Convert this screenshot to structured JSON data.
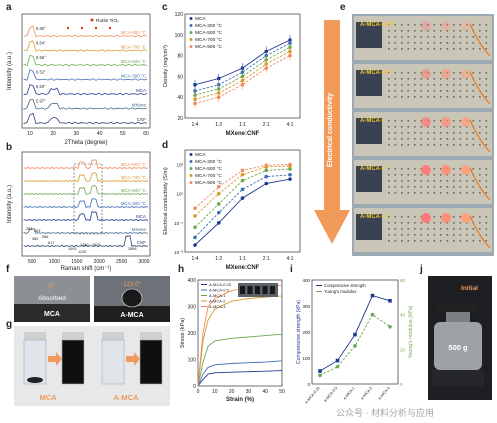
{
  "panel_letters": [
    "a",
    "b",
    "c",
    "d",
    "e",
    "f",
    "g",
    "h",
    "i",
    "j"
  ],
  "colors": {
    "mca": "#1f3a93",
    "mca300": "#3f6fb3",
    "mca500": "#6aa84f",
    "mca700": "#d79a2b",
    "mca900": "#f08a5a",
    "cnf": "#2a3f6e",
    "mxene": "#3d6b8c",
    "arrow": "#f29a5a",
    "rutile": "#d0421b"
  },
  "panel_a": {
    "ylabel": "Intensity (a.u.)",
    "xlabel": "2Theta (degree)",
    "xticks": [
      "10",
      "20",
      "30",
      "40",
      "50",
      "60"
    ],
    "legend": "Rutile TiO₂",
    "angle_labels": [
      "6.80°",
      "6.64°",
      "6.56°",
      "6.52°",
      "6.50°",
      "5.97°"
    ],
    "curve_labels": [
      "MCA-900 °C",
      "MCA-700 °C",
      "MCA-500 °C",
      "MCA-300 °C",
      "MCA",
      "MXene",
      "CNF"
    ]
  },
  "panel_b": {
    "ylabel": "Intensity (a.u.)",
    "xlabel": "Raman shift (cm⁻¹)",
    "xticks": [
      "500",
      "1000",
      "1500",
      "2000",
      "2500",
      "3000"
    ],
    "curve_labels": [
      "MCA-900 °C",
      "MCA-700 °C",
      "MCA-500 °C",
      "MCA-300 °C",
      "MCA",
      "MXene",
      "CNF"
    ],
    "peak_labels": [
      "1340",
      "1575",
      "2896",
      "380",
      "556",
      "1093",
      "1125",
      "283",
      "403",
      "617"
    ]
  },
  "panel_c": {
    "ylabel": "Density (mg/cm³)",
    "xlabel": "MXene:CNF",
    "legend": [
      "MCA",
      "MCA-300 °C",
      "MCA-500 °C",
      "MCA-700 °C",
      "MCA-900 °C"
    ]
  },
  "panel_d": {
    "ylabel": "Electrical conductivity (S/m)",
    "xlabel": "MXene:CNF",
    "legend": [
      "MCA",
      "MCA-300 °C",
      "MCA-500 °C",
      "MCA-700 °C",
      "MCA-900 °C"
    ]
  },
  "panel_e": {
    "arrow_label": "Electrical conductivity",
    "samples": [
      "A-MCA-0.25",
      "A-MCA-0.5",
      "A-MCA-1",
      "A-MCA-2",
      "A-MCA-4"
    ]
  },
  "panel_f": {
    "left_angle": "0°",
    "left_status": "Absorbed",
    "left_label": "MCA",
    "right_angle": "123.0°",
    "right_label": "A-MCA"
  },
  "panel_g": {
    "left_label": "MCA",
    "right_label": "A-MCA"
  },
  "panel_h": {
    "ylabel": "Stress (kPa)",
    "xlabel": "Strain (%)",
    "legend": [
      "A-MCA-0.25",
      "A-MCA-0.5",
      "A-MCA-1",
      "A-MCA-2",
      "A-MCA-4"
    ]
  },
  "panel_i": {
    "ylabel_left": "Compressive strength (kPa)",
    "ylabel_right": "Young's modulus (kPa)",
    "legend": [
      "Compressive strength",
      "Young's modulus"
    ],
    "categories": [
      "A-MCA-0.25",
      "A-MCA-0.5",
      "A-MCA-1",
      "A-MCA-2",
      "A-MCA-4"
    ]
  },
  "panel_j": {
    "top_label": "Initial",
    "weight": "500 g"
  },
  "watermark": "公众号 · 材料分析与应用",
  "chart_data": [
    {
      "panel": "c",
      "type": "line",
      "categories": [
        "1:4",
        "1:2",
        "1:1",
        "2:1",
        "4:1"
      ],
      "ylim": [
        20,
        120
      ],
      "yticks": [
        20,
        40,
        60,
        80,
        100,
        120
      ],
      "series": [
        {
          "name": "MCA",
          "values": [
            52,
            58,
            68,
            84,
            95
          ]
        },
        {
          "name": "MCA-300 °C",
          "values": [
            46,
            52,
            64,
            80,
            92
          ]
        },
        {
          "name": "MCA-500 °C",
          "values": [
            42,
            48,
            60,
            76,
            88
          ]
        },
        {
          "name": "MCA-700 °C",
          "values": [
            38,
            44,
            56,
            72,
            84
          ]
        },
        {
          "name": "MCA-900 °C",
          "values": [
            34,
            40,
            52,
            68,
            80
          ]
        }
      ]
    },
    {
      "panel": "d",
      "type": "line",
      "yscale": "log",
      "categories": [
        "1:4",
        "1:2",
        "1:1",
        "2:1",
        "4:1"
      ],
      "ylim": [
        0.001,
        10000
      ],
      "yticks": [
        "10⁻³",
        "10⁻¹",
        "10¹",
        "10³"
      ],
      "series": [
        {
          "name": "MCA",
          "values": [
            0.003,
            0.1,
            5,
            50,
            100
          ]
        },
        {
          "name": "MCA-300 °C",
          "values": [
            0.01,
            0.5,
            20,
            150,
            200
          ]
        },
        {
          "name": "MCA-500 °C",
          "values": [
            0.05,
            2,
            80,
            400,
            500
          ]
        },
        {
          "name": "MCA-700 °C",
          "values": [
            0.3,
            10,
            200,
            700,
            800
          ]
        },
        {
          "name": "MCA-900 °C",
          "values": [
            1,
            30,
            400,
            900,
            1000
          ]
        }
      ]
    },
    {
      "panel": "h",
      "type": "line",
      "xlim": [
        0,
        50
      ],
      "ylim": [
        0,
        400
      ],
      "xticks": [
        0,
        10,
        20,
        30,
        40,
        50
      ],
      "yticks": [
        0,
        100,
        200,
        300,
        400
      ],
      "series": [
        {
          "name": "A-MCA-0.25",
          "x": [
            0,
            3,
            6,
            10,
            20,
            30,
            40,
            50
          ],
          "values": [
            0,
            25,
            45,
            50,
            52,
            54,
            56,
            58
          ]
        },
        {
          "name": "A-MCA-0.5",
          "x": [
            0,
            3,
            6,
            10,
            20,
            30,
            40,
            50
          ],
          "values": [
            0,
            45,
            70,
            80,
            85,
            88,
            90,
            95
          ]
        },
        {
          "name": "A-MCA-1",
          "x": [
            0,
            3,
            6,
            10,
            20,
            30,
            40,
            50
          ],
          "values": [
            0,
            90,
            150,
            170,
            180,
            185,
            190,
            195
          ]
        },
        {
          "name": "A-MCA-2",
          "x": [
            0,
            3,
            6,
            10,
            20,
            30,
            40,
            50
          ],
          "values": [
            0,
            170,
            250,
            290,
            320,
            330,
            335,
            340
          ]
        },
        {
          "name": "A-MCA-4",
          "x": [
            0,
            3,
            6,
            10,
            20,
            30,
            40,
            50
          ],
          "values": [
            0,
            200,
            300,
            330,
            360,
            370,
            375,
            380
          ]
        }
      ]
    },
    {
      "panel": "i",
      "type": "line",
      "categories": [
        "A-MCA-0.25",
        "A-MCA-0.5",
        "A-MCA-1",
        "A-MCA-2",
        "A-MCA-4"
      ],
      "ylim": [
        0,
        400
      ],
      "y2lim": [
        0,
        60
      ],
      "yticks": [
        0,
        100,
        200,
        300,
        400
      ],
      "y2ticks": [
        0,
        20,
        40,
        60
      ],
      "series": [
        {
          "name": "Compressive strength",
          "axis": "left",
          "values": [
            50,
            90,
            190,
            340,
            320
          ]
        },
        {
          "name": "Young's modulus",
          "axis": "right",
          "values": [
            5,
            10,
            22,
            40,
            33
          ]
        }
      ]
    }
  ]
}
